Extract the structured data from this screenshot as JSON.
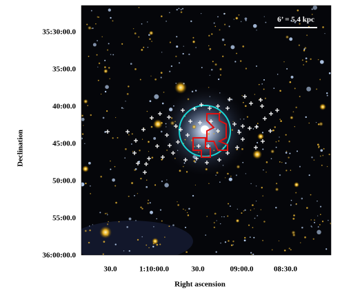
{
  "image": {
    "scale_label": "6’ = 5.4 kpc"
  },
  "axes": {
    "x_label": "Right ascension",
    "y_label": "Declination",
    "x_ticks": [
      "30.0",
      "1:10:00.0",
      "30.0",
      "09:00.0",
      "08:30.0"
    ],
    "y_ticks": [
      "35:30:00.0",
      "35:00.0",
      "40:00.0",
      "45:00.0",
      "50:00.0",
      "55:00.0",
      "36:00:00.0"
    ]
  }
}
